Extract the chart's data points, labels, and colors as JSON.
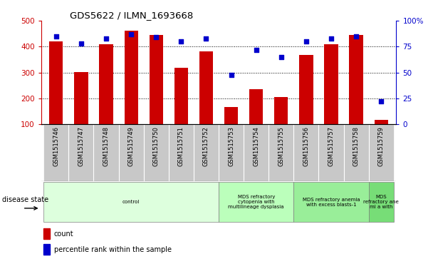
{
  "title": "GDS5622 / ILMN_1693668",
  "samples": [
    "GSM1515746",
    "GSM1515747",
    "GSM1515748",
    "GSM1515749",
    "GSM1515750",
    "GSM1515751",
    "GSM1515752",
    "GSM1515753",
    "GSM1515754",
    "GSM1515755",
    "GSM1515756",
    "GSM1515757",
    "GSM1515758",
    "GSM1515759"
  ],
  "counts": [
    420,
    302,
    408,
    462,
    445,
    317,
    383,
    168,
    237,
    204,
    367,
    408,
    445,
    118
  ],
  "percentile_ranks": [
    85,
    78,
    83,
    87,
    84,
    80,
    83,
    48,
    72,
    65,
    80,
    83,
    85,
    22
  ],
  "ylim_left": [
    100,
    500
  ],
  "ylim_right": [
    0,
    100
  ],
  "yticks_left": [
    100,
    200,
    300,
    400,
    500
  ],
  "yticks_right": [
    0,
    25,
    50,
    75,
    100
  ],
  "bar_color": "#CC0000",
  "dot_color": "#0000CC",
  "bar_width": 0.55,
  "group_labels": [
    "control",
    "MDS refractory\ncytopenia with\nmultilineage dysplasia",
    "MDS refractory anemia\nwith excess blasts-1",
    "MDS\nrefractory ane\nmi a with"
  ],
  "group_starts": [
    0,
    7,
    10,
    13
  ],
  "group_ends": [
    7,
    10,
    13,
    14
  ],
  "group_colors": [
    "#DDFFDD",
    "#BBFFBB",
    "#99EE99",
    "#77DD77"
  ],
  "xlabel_disease": "disease state",
  "legend_count_label": "count",
  "legend_pct_label": "percentile rank within the sample",
  "background_color": "#FFFFFF",
  "tick_area_bg": "#C8C8C8"
}
